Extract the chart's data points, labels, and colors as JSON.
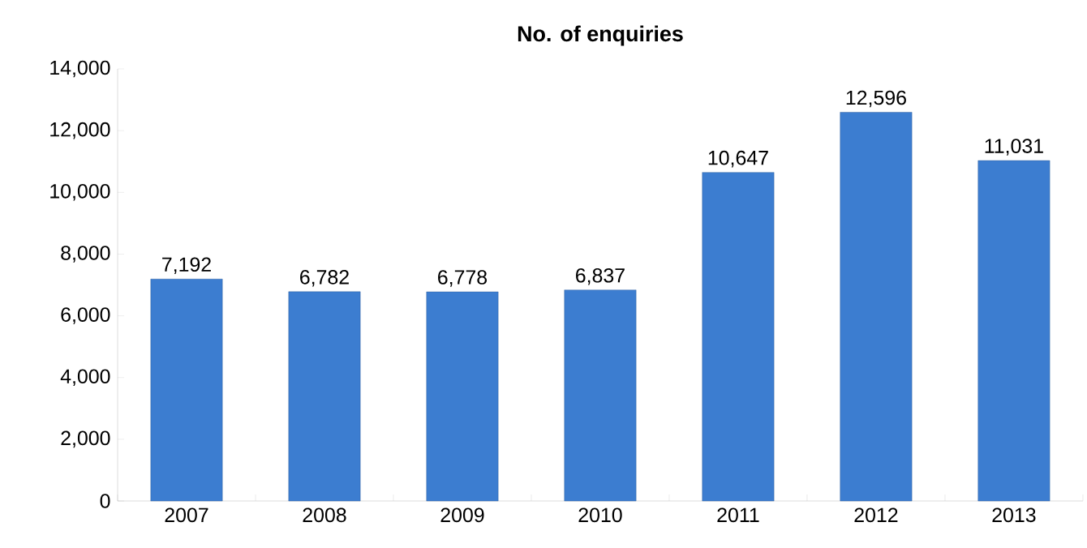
{
  "chart_data": {
    "type": "bar",
    "title": "No. of enquiries",
    "categories": [
      "2007",
      "2008",
      "2009",
      "2010",
      "2011",
      "2012",
      "2013"
    ],
    "values": [
      7192,
      6782,
      6778,
      6837,
      10647,
      12596,
      11031
    ],
    "value_labels": [
      "7,192",
      "6,782",
      "6,778",
      "6,837",
      "10,647",
      "12,596",
      "11,031"
    ],
    "color": "#3c7dd0",
    "ylim": [
      0,
      14000
    ],
    "yticks": [
      {
        "value": 0,
        "label": "0"
      },
      {
        "value": 2000,
        "label": "2,000"
      },
      {
        "value": 4000,
        "label": "4,000"
      },
      {
        "value": 6000,
        "label": "6,000"
      },
      {
        "value": 8000,
        "label": "8,000"
      },
      {
        "value": 10000,
        "label": "10,000"
      },
      {
        "value": 12000,
        "label": "12,000"
      },
      {
        "value": 14000,
        "label": "14,000"
      }
    ]
  }
}
